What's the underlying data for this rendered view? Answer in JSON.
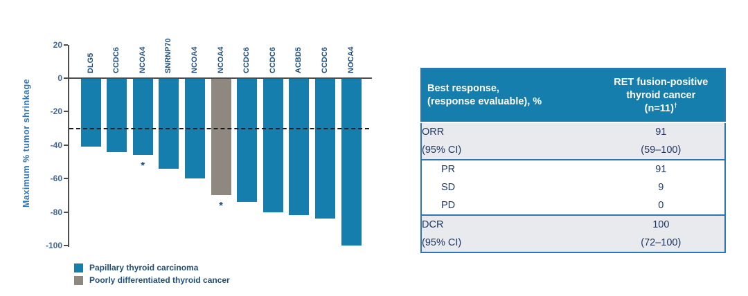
{
  "chart_data": {
    "type": "bar",
    "subtype": "waterfall",
    "title": "",
    "xlabel": "",
    "ylabel": "Maximum % tumor shrinkage",
    "ylim": [
      -100,
      20
    ],
    "yticks": [
      20,
      0,
      -20,
      -40,
      -60,
      -80,
      -100
    ],
    "reference_line": {
      "y": -30,
      "style": "dashed"
    },
    "grid": false,
    "categories": [
      "DLG5",
      "CCDC6",
      "NCOA4",
      "SNRNP70",
      "NCOA4",
      "NCOA4",
      "CCDC6",
      "CCDC6",
      "ACBD5",
      "CCDC6",
      "NOCA4"
    ],
    "values": [
      -41,
      -44,
      -46,
      -54,
      -60,
      -70,
      -74,
      -80,
      -82,
      -84,
      -100
    ],
    "series_by_bar": [
      "papillary",
      "papillary",
      "papillary",
      "papillary",
      "papillary",
      "poorly_differentiated",
      "papillary",
      "papillary",
      "papillary",
      "papillary",
      "papillary"
    ],
    "annotations": [
      {
        "bar_index": 2,
        "symbol": "*"
      },
      {
        "bar_index": 5,
        "symbol": "*"
      }
    ],
    "legend_position": "bottom-left",
    "legend": [
      {
        "key": "papillary",
        "label": "Papillary thyroid carcinoma",
        "color": "#157EAD"
      },
      {
        "key": "poorly_differentiated",
        "label": "Poorly differentiated thyroid cancer",
        "color": "#8E8880"
      }
    ]
  },
  "table": {
    "header": {
      "col1_lines": [
        "Best response,",
        "(response evaluable), %"
      ],
      "col2_lines": [
        "RET fusion-positive",
        "thyroid cancer"
      ],
      "col2_n": "(n=11)",
      "col2_dagger": "†"
    },
    "rows": [
      {
        "label": "ORR",
        "value": "91",
        "shaded": true,
        "indent": false,
        "group_start": false
      },
      {
        "label": "(95% CI)",
        "value": "(59–100)",
        "shaded": true,
        "indent": false,
        "group_start": false
      },
      {
        "label": "PR",
        "value": "91",
        "shaded": false,
        "indent": true,
        "group_start": true
      },
      {
        "label": "SD",
        "value": "9",
        "shaded": false,
        "indent": true,
        "group_start": false
      },
      {
        "label": "PD",
        "value": "0",
        "shaded": false,
        "indent": true,
        "group_start": false
      },
      {
        "label": "DCR",
        "value": "100",
        "shaded": true,
        "indent": false,
        "group_start": true
      },
      {
        "label": "(95% CI)",
        "value": "(72–100)",
        "shaded": true,
        "indent": false,
        "group_start": false
      }
    ]
  }
}
